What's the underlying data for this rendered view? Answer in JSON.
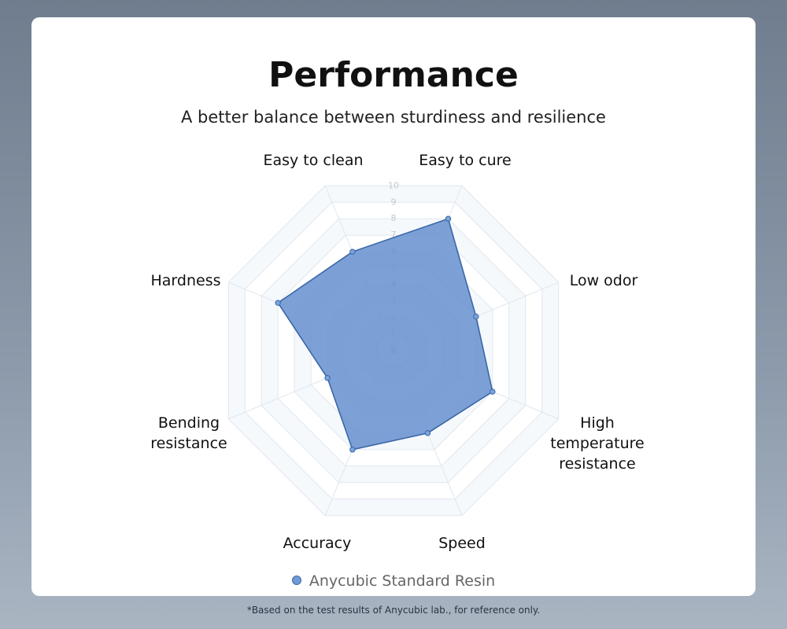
{
  "chart_data": {
    "type": "radar",
    "title": "Performance",
    "subtitle": "A better balance between sturdiness and resilience",
    "categories": [
      "Easy to cure",
      "Low odor",
      "High temperature resistance",
      "Speed",
      "Accuracy",
      "Bending resistance",
      "Hardness",
      "Easy to clean"
    ],
    "series": [
      {
        "name": "Anycubic Standard Resin",
        "color": "#3a67a8",
        "values": [
          8,
          5,
          6,
          5,
          6,
          4,
          7,
          6
        ]
      }
    ],
    "ylim": [
      0,
      10
    ],
    "yticks": [
      0,
      1,
      2,
      3,
      4,
      5,
      6,
      7,
      8,
      9,
      10
    ],
    "grid": true,
    "footnote": "*Based on the test results of Anycubic lab., for reference only."
  }
}
